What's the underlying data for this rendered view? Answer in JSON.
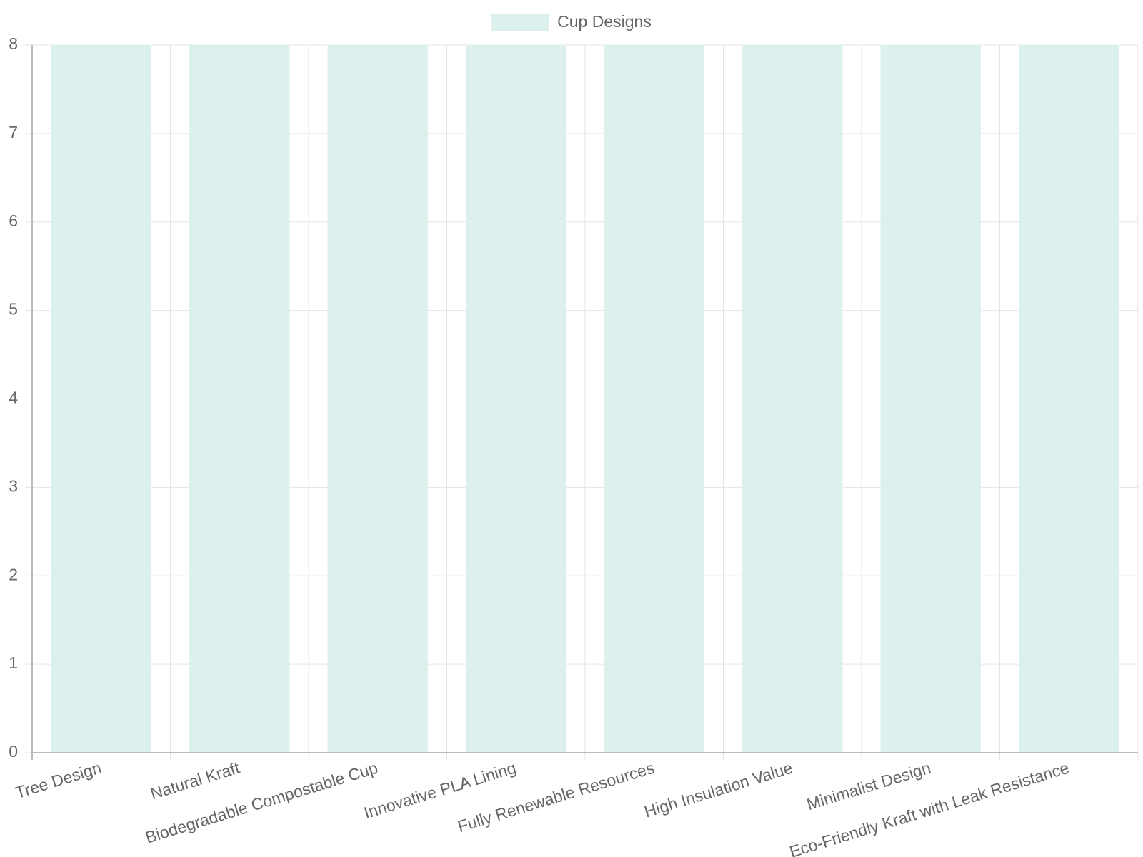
{
  "chart_data": {
    "type": "bar",
    "categories": [
      "Tree Design",
      "Natural Kraft",
      "Biodegradable Compostable Cup",
      "Innovative PLA Lining",
      "Fully Renewable Resources",
      "High Insulation Value",
      "Minimalist Design",
      "Eco-Friendly Kraft with Leak Resistance"
    ],
    "series": [
      {
        "name": "Cup Designs",
        "color": "#dcf0ee",
        "values": [
          8,
          8,
          8,
          8,
          8,
          8,
          8,
          8
        ]
      }
    ],
    "ylim": [
      0,
      8
    ],
    "yticks": [
      0,
      1,
      2,
      3,
      4,
      5,
      6,
      7,
      8
    ],
    "grid": true,
    "legend": "top"
  }
}
